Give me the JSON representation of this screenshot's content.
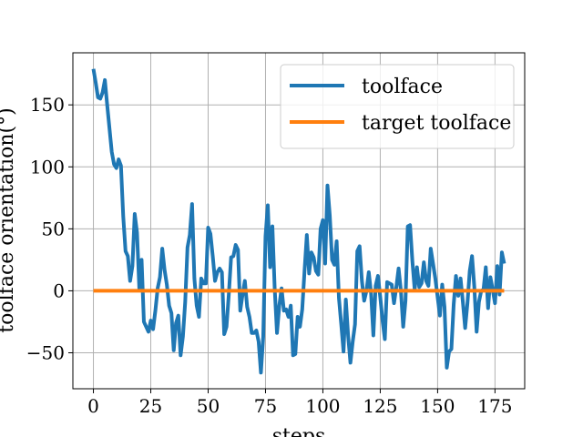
{
  "chart_data": {
    "type": "line",
    "title": "",
    "xlabel": "steps",
    "ylabel": "toolface orientation(°)",
    "xlim": [
      -8.95,
      187.95
    ],
    "ylim": [
      -79,
      192
    ],
    "xticks": [
      0,
      25,
      50,
      75,
      100,
      125,
      150,
      175
    ],
    "yticks": [
      -50,
      0,
      50,
      100,
      150
    ],
    "ytick_labels": [
      "−50",
      "0",
      "50",
      "100",
      "150"
    ],
    "grid": true,
    "legend_position": "upper right",
    "series": [
      {
        "name": "toolface",
        "color": "#1f77b4",
        "y": [
          179,
          168,
          156,
          155,
          160,
          170,
          150,
          131,
          112,
          102,
          99,
          106,
          101,
          60,
          32,
          28,
          8,
          20,
          62,
          47,
          2,
          25,
          -25,
          -29,
          -33,
          -24,
          -31,
          -16,
          2,
          11,
          34,
          17,
          5,
          -12,
          -18,
          -48,
          -26,
          -20,
          -52,
          -37,
          -9,
          35,
          45,
          70,
          10,
          -12,
          -21,
          10,
          6,
          6,
          51,
          46,
          28,
          8,
          15,
          18,
          15,
          -35,
          -29,
          -3,
          27,
          28,
          37,
          33,
          -16,
          -3,
          8,
          -13,
          -21,
          -34,
          -34,
          -32,
          -41,
          -66,
          -37,
          44,
          69,
          19,
          52,
          2,
          -34,
          -12,
          2,
          -16,
          -15,
          -21,
          -12,
          -52,
          -51,
          -21,
          -29,
          -15,
          16,
          45,
          14,
          31,
          27,
          16,
          13,
          50,
          57,
          22,
          85,
          61,
          25,
          21,
          40,
          -6,
          -27,
          -49,
          -7,
          -36,
          -58,
          -41,
          -27,
          32,
          36,
          8,
          -8,
          0,
          15,
          -2,
          -36,
          4,
          12,
          -5,
          -24,
          -39,
          7,
          6,
          5,
          -10,
          3,
          18,
          0,
          -29,
          -8,
          52,
          53,
          24,
          1,
          19,
          3,
          6,
          23,
          8,
          4,
          34,
          22,
          10,
          -5,
          -20,
          5,
          -13,
          -62,
          -49,
          -47,
          -11,
          12,
          -4,
          10,
          -9,
          -30,
          -10,
          16,
          28,
          3,
          -33,
          -9,
          0,
          1,
          19,
          -14,
          11,
          1,
          -10,
          20,
          -3,
          31,
          22
        ]
      },
      {
        "name": "target toolface",
        "color": "#ff7f0e",
        "x_range": [
          0,
          179
        ],
        "constant": 0
      }
    ]
  }
}
